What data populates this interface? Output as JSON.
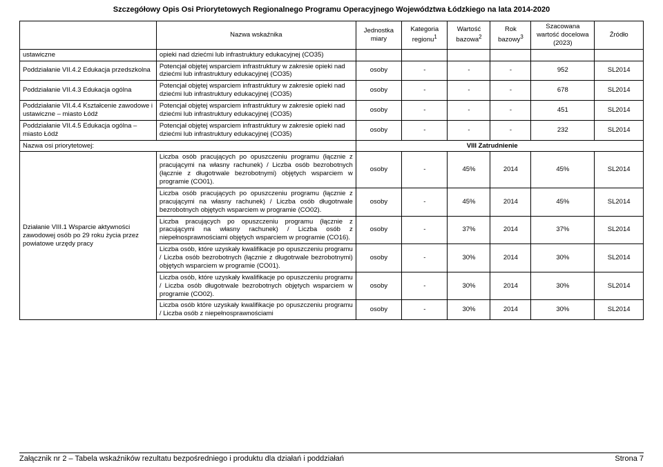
{
  "document": {
    "title": "Szczegółowy Opis Osi Priorytetowych Regionalnego Programu Operacyjnego Województwa Łódzkiego na lata 2014-2020",
    "footer_left": "Załącznik nr 2 – Tabela wskaźników rezultatu bezpośredniego i produktu dla działań i poddziałań",
    "footer_right": "Strona 7"
  },
  "headers": {
    "action": "",
    "indicator": "Nazwa wskaźnika",
    "unit": "Jednostka miary",
    "category": "Kategoria regionu",
    "category_sup": "1",
    "baseval": "Wartość bazowa",
    "baseval_sup": "2",
    "baseyear": "Rok bazowy",
    "baseyear_sup": "3",
    "target": "Szacowana wartość docelowa (2023)",
    "source": "Źródło"
  },
  "rows_top": [
    {
      "action": "ustawiczne",
      "indicator": "opieki nad dziećmi lub infrastruktury edukacyjnej (CO35)",
      "unit": "",
      "cat": "",
      "baseval": "",
      "baseyear": "",
      "target": "",
      "source": ""
    },
    {
      "action": "Poddziałanie VII.4.2 Edukacja przedszkolna",
      "indicator": "Potencjał objętej wsparciem infrastruktury w zakresie opieki nad dziećmi lub infrastruktury edukacyjnej (CO35)",
      "unit": "osoby",
      "cat": "-",
      "baseval": "-",
      "baseyear": "-",
      "target": "952",
      "source": "SL2014"
    },
    {
      "action": "Poddziałanie VII.4.3 Edukacja ogólna",
      "indicator": "Potencjał objętej wsparciem infrastruktury w zakresie opieki nad dziećmi lub infrastruktury edukacyjnej (CO35)",
      "unit": "osoby",
      "cat": "-",
      "baseval": "-",
      "baseyear": "-",
      "target": "678",
      "source": "SL2014"
    },
    {
      "action": "Poddziałanie VII.4.4 Kształcenie zawodowe i ustawiczne – miasto Łódź",
      "indicator": "Potencjał objętej wsparciem infrastruktury w zakresie opieki nad dziećmi lub infrastruktury edukacyjnej (CO35)",
      "unit": "osoby",
      "cat": "-",
      "baseval": "-",
      "baseyear": "-",
      "target": "451",
      "source": "SL2014"
    },
    {
      "action": "Poddziałanie VII.4.5 Edukacja ogólna – miasto Łódź",
      "indicator": "Potencjał objętej wsparciem infrastruktury w zakresie opieki nad dziećmi lub infrastruktury edukacyjnej (CO35)",
      "unit": "osoby",
      "cat": "-",
      "baseval": "-",
      "baseyear": "-",
      "target": "232",
      "source": "SL2014"
    }
  ],
  "axis": {
    "label": "Nazwa osi priorytetowej:",
    "value": "VIII Zatrudnienie"
  },
  "rows_bottom_action": "Działanie VIII.1 Wsparcie aktywności zawodowej osób po 29 roku życia przez powiatowe urzędy pracy",
  "rows_bottom": [
    {
      "indicator": "Liczba osób pracujących po opuszczeniu programu (łącznie z pracującymi na własny rachunek) / Liczba osób bezrobotnych (łącznie z długotrwale bezrobotnymi) objętych wsparciem w programie (CO01).",
      "unit": "osoby",
      "cat": "-",
      "baseval": "45%",
      "baseyear": "2014",
      "target": "45%",
      "source": "SL2014"
    },
    {
      "indicator": "Liczba osób pracujących po opuszczeniu programu (łącznie z pracującymi na własny rachunek) / Liczba osób długotrwale bezrobotnych objętych wsparciem w programie (CO02).",
      "unit": "osoby",
      "cat": "-",
      "baseval": "45%",
      "baseyear": "2014",
      "target": "45%",
      "source": "SL2014"
    },
    {
      "indicator": "Liczba pracujących po opuszczeniu programu (łącznie z pracującymi na własny rachunek) / Liczba osób z niepełnosprawnościami objętych wsparciem w programie (CO16).",
      "unit": "osoby",
      "cat": "-",
      "baseval": "37%",
      "baseyear": "2014",
      "target": "37%",
      "source": "SL2014"
    },
    {
      "indicator": "Liczba osób, które uzyskały kwalifikacje po opuszczeniu programu / Liczba osób bezrobotnych (łącznie z długotrwale bezrobotnymi) objętych wsparciem w programie (CO01).",
      "unit": "osoby",
      "cat": "-",
      "baseval": "30%",
      "baseyear": "2014",
      "target": "30%",
      "source": "SL2014"
    },
    {
      "indicator": "Liczba osób, które uzyskały kwalifikacje po opuszczeniu programu / Liczba osób długotrwale bezrobotnych objętych wsparciem w programie (CO02).",
      "unit": "osoby",
      "cat": "-",
      "baseval": "30%",
      "baseyear": "2014",
      "target": "30%",
      "source": "SL2014"
    },
    {
      "indicator": "Liczba osób które uzyskały kwalifikacje po opuszczeniu programu / Liczba osób z niepełnosprawnościami",
      "unit": "osoby",
      "cat": "-",
      "baseval": "30%",
      "baseyear": "2014",
      "target": "30%",
      "source": "SL2014"
    }
  ]
}
